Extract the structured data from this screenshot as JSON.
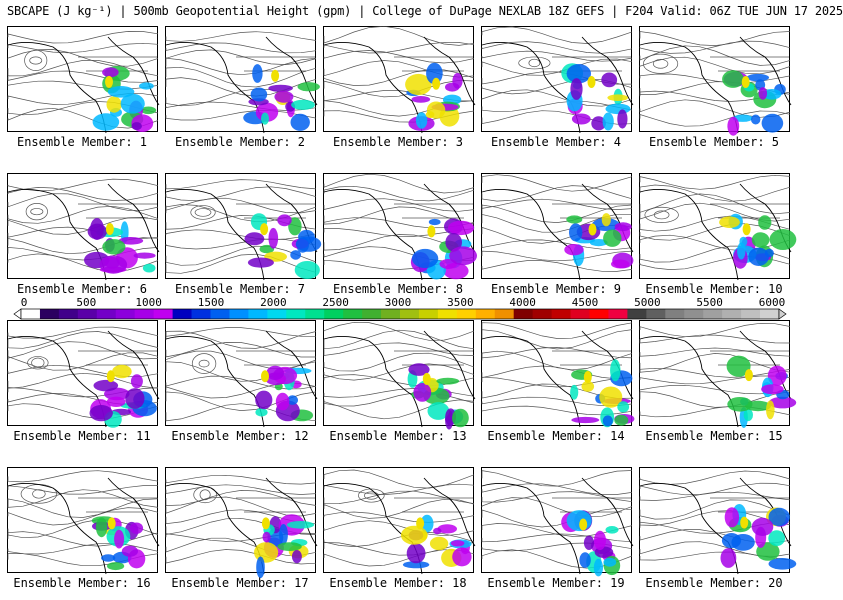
{
  "title": "SBCAPE (J kg⁻¹) | 500mb Geopotential Height (gpm) | College of DuPage NEXLAB 18Z GEFS | F204 Valid: 06Z TUE JUN 17 2025",
  "colorbar": {
    "ticks": [
      "0",
      "500",
      "1000",
      "1500",
      "2000",
      "2500",
      "3000",
      "3500",
      "4000",
      "4500",
      "5000",
      "5500",
      "6000"
    ],
    "colors": [
      "#ffffff",
      "#2b0060",
      "#40008a",
      "#5a00a8",
      "#7300c8",
      "#8c00dc",
      "#a600e8",
      "#c000f0",
      "#0000c0",
      "#0030e0",
      "#0060f0",
      "#0090ff",
      "#00b8ff",
      "#00d8f0",
      "#00e8c0",
      "#00e090",
      "#00d060",
      "#20c040",
      "#40b030",
      "#70b020",
      "#a0c010",
      "#c8d000",
      "#f0e000",
      "#ffd000",
      "#ffb000",
      "#f09000",
      "#800000",
      "#a00000",
      "#c00000",
      "#e00020",
      "#ff0000",
      "#f00040",
      "#404040",
      "#606060",
      "#808080",
      "#909090",
      "#a0a0a0",
      "#b0b0b0",
      "#c0c0c0",
      "#d0d0d0"
    ]
  },
  "members": [
    {
      "label": "Ensemble Member: 1"
    },
    {
      "label": "Ensemble Member: 2"
    },
    {
      "label": "Ensemble Member: 3"
    },
    {
      "label": "Ensemble Member: 4"
    },
    {
      "label": "Ensemble Member: 5"
    },
    {
      "label": "Ensemble Member: 6"
    },
    {
      "label": "Ensemble Member: 7"
    },
    {
      "label": "Ensemble Member: 8"
    },
    {
      "label": "Ensemble Member: 9"
    },
    {
      "label": "Ensemble Member: 10"
    },
    {
      "label": "Ensemble Member: 11"
    },
    {
      "label": "Ensemble Member: 12"
    },
    {
      "label": "Ensemble Member: 13"
    },
    {
      "label": "Ensemble Member: 14"
    },
    {
      "label": "Ensemble Member: 15"
    },
    {
      "label": "Ensemble Member: 16"
    },
    {
      "label": "Ensemble Member: 17"
    },
    {
      "label": "Ensemble Member: 18"
    },
    {
      "label": "Ensemble Member: 19"
    },
    {
      "label": "Ensemble Member: 20"
    }
  ]
}
